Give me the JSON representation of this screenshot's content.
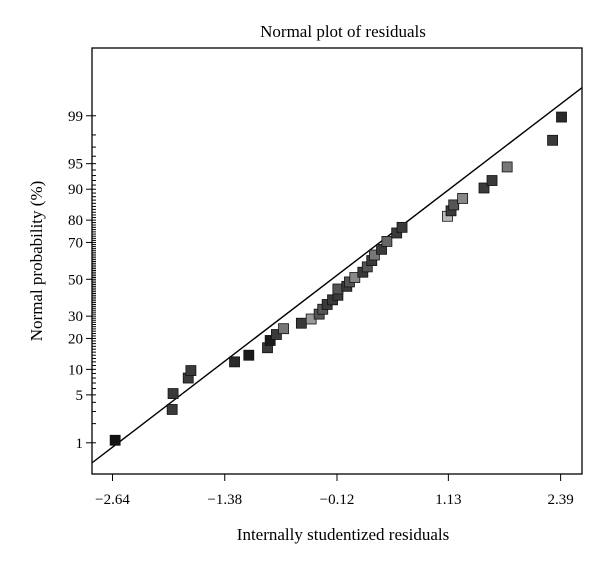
{
  "chart_data": {
    "type": "scatter",
    "title": "Normal plot of residuals",
    "xlabel": "Internally studentized residuals",
    "ylabel": "Normal probability (%)",
    "xlim": [
      -2.87,
      2.63
    ],
    "ylim": [
      0.28,
      99.95
    ],
    "y_scale": "normal-probability",
    "grid": false,
    "legend": "none",
    "x_ticks": [
      -2.64,
      -1.38,
      -0.12,
      1.13,
      2.39
    ],
    "x_tick_labels": [
      "−2.64",
      "−1.38",
      "−0.12",
      "1.13",
      "2.39"
    ],
    "y_ticks": [
      1,
      5,
      10,
      20,
      30,
      50,
      70,
      80,
      90,
      95,
      99
    ],
    "y_tick_labels": [
      "1",
      "5",
      "10",
      "20",
      "30",
      "50",
      "70",
      "80",
      "90",
      "95",
      "99"
    ],
    "fit_line": {
      "x": [
        -2.87,
        2.63
      ],
      "y": [
        0.45,
        99.68
      ]
    },
    "points": [
      {
        "x": -2.61,
        "y": 1.1,
        "shade": "#111111"
      },
      {
        "x": -1.97,
        "y": 3.2,
        "shade": "#3a3a3a"
      },
      {
        "x": -1.96,
        "y": 5.2,
        "shade": "#3a3a3a"
      },
      {
        "x": -1.79,
        "y": 8.0,
        "shade": "#3a3a3a"
      },
      {
        "x": -1.76,
        "y": 9.7,
        "shade": "#3a3a3a"
      },
      {
        "x": -1.27,
        "y": 12.0,
        "shade": "#2a2a2a"
      },
      {
        "x": -1.11,
        "y": 14.0,
        "shade": "#1a1a1a"
      },
      {
        "x": -0.9,
        "y": 16.5,
        "shade": "#3a3a3a"
      },
      {
        "x": -0.87,
        "y": 19.2,
        "shade": "#1a1a1a"
      },
      {
        "x": -0.8,
        "y": 21.6,
        "shade": "#3a3a3a"
      },
      {
        "x": -0.72,
        "y": 24.1,
        "shade": "#777777"
      },
      {
        "x": -0.52,
        "y": 26.6,
        "shade": "#3a3a3a"
      },
      {
        "x": -0.41,
        "y": 28.6,
        "shade": "#999999"
      },
      {
        "x": -0.32,
        "y": 31.0,
        "shade": "#555555"
      },
      {
        "x": -0.28,
        "y": 33.5,
        "shade": "#555555"
      },
      {
        "x": -0.23,
        "y": 36.0,
        "shade": "#3a3a3a"
      },
      {
        "x": -0.17,
        "y": 38.5,
        "shade": "#3a3a3a"
      },
      {
        "x": -0.11,
        "y": 41.0,
        "shade": "#3a3a3a"
      },
      {
        "x": -0.11,
        "y": 44.5,
        "shade": "#555555"
      },
      {
        "x": -0.01,
        "y": 46.0,
        "shade": "#3a3a3a"
      },
      {
        "x": 0.02,
        "y": 48.5,
        "shade": "#555555"
      },
      {
        "x": 0.08,
        "y": 51.0,
        "shade": "#888888"
      },
      {
        "x": 0.17,
        "y": 54.0,
        "shade": "#3a3a3a"
      },
      {
        "x": 0.22,
        "y": 57.0,
        "shade": "#555555"
      },
      {
        "x": 0.27,
        "y": 60.5,
        "shade": "#3a3a3a"
      },
      {
        "x": 0.3,
        "y": 63.5,
        "shade": "#777777"
      },
      {
        "x": 0.38,
        "y": 66.5,
        "shade": "#3a3a3a"
      },
      {
        "x": 0.44,
        "y": 70.5,
        "shade": "#666666"
      },
      {
        "x": 0.55,
        "y": 74.5,
        "shade": "#3a3a3a"
      },
      {
        "x": 0.61,
        "y": 77.0,
        "shade": "#3a3a3a"
      },
      {
        "x": 1.12,
        "y": 81.5,
        "shade": "#bbbbbb"
      },
      {
        "x": 1.16,
        "y": 83.5,
        "shade": "#3a3a3a"
      },
      {
        "x": 1.19,
        "y": 85.5,
        "shade": "#555555"
      },
      {
        "x": 1.29,
        "y": 87.5,
        "shade": "#888888"
      },
      {
        "x": 1.53,
        "y": 90.3,
        "shade": "#3a3a3a"
      },
      {
        "x": 1.62,
        "y": 92.0,
        "shade": "#3a3a3a"
      },
      {
        "x": 1.79,
        "y": 94.5,
        "shade": "#777777"
      },
      {
        "x": 2.3,
        "y": 97.6,
        "shade": "#3a3a3a"
      },
      {
        "x": 2.4,
        "y": 98.95,
        "shade": "#2a2a2a"
      }
    ]
  }
}
